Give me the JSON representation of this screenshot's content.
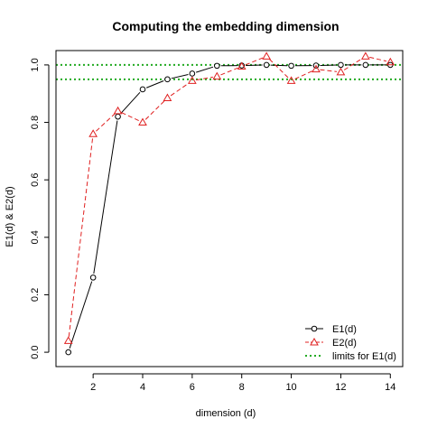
{
  "chart_data": {
    "type": "line",
    "title": "Computing the embedding dimension",
    "xlabel": "dimension (d)",
    "ylabel": "E1(d) & E2(d)",
    "xlim": [
      0.5,
      14.5
    ],
    "ylim": [
      -0.05,
      1.05
    ],
    "xticks": [
      2,
      4,
      6,
      8,
      10,
      12,
      14
    ],
    "yticks": [
      0.0,
      0.2,
      0.4,
      0.6,
      0.8,
      1.0
    ],
    "ytick_labels": [
      "0.0",
      "0.2",
      "0.4",
      "0.6",
      "0.8",
      "1.0"
    ],
    "grid": false,
    "legend_position": "bottom-right",
    "x": [
      1,
      2,
      3,
      4,
      5,
      6,
      7,
      8,
      9,
      10,
      11,
      12,
      13,
      14
    ],
    "series": [
      {
        "name": "E1(d)",
        "color": "#000000",
        "line": "solid",
        "marker": "circle",
        "values": [
          0.0,
          0.26,
          0.82,
          0.915,
          0.95,
          0.97,
          0.997,
          0.998,
          1.0,
          0.997,
          0.998,
          1.0,
          1.0,
          1.0
        ]
      },
      {
        "name": "E2(d)",
        "color": "#e02020",
        "line": "dashed",
        "marker": "triangle",
        "values": [
          0.04,
          0.76,
          0.84,
          0.8,
          0.885,
          0.945,
          0.96,
          0.995,
          1.03,
          0.945,
          0.985,
          0.975,
          1.03,
          1.01
        ]
      }
    ],
    "reference_lines": {
      "name": "limits for E1(d)",
      "color": "#22aa22",
      "style": "dotted",
      "values": [
        1.0,
        0.95
      ]
    }
  }
}
